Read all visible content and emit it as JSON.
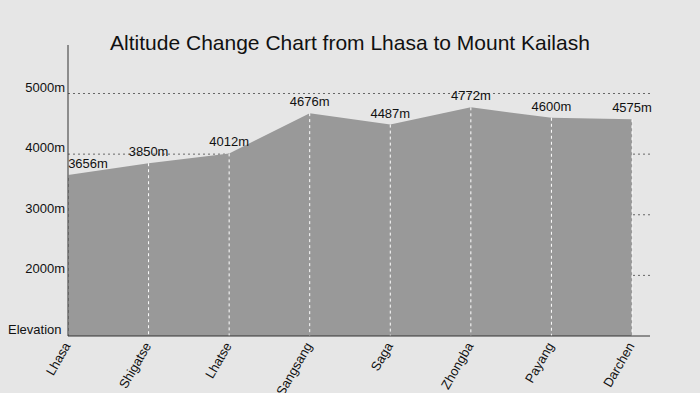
{
  "chart_data": {
    "type": "area",
    "title": "Altitude Change Chart from Lhasa to Mount Kailash",
    "y_label": "Elevation",
    "categories": [
      "Lhasa",
      "Shigatse",
      "Lhatse",
      "Sangsang",
      "Saga",
      "Zhongba",
      "Payang",
      "Darchen"
    ],
    "values": [
      3656,
      3850,
      4012,
      4676,
      4487,
      4772,
      4600,
      4575
    ],
    "value_labels": [
      "3656m",
      "3850m",
      "4012m",
      "4676m",
      "4487m",
      "4772m",
      "4600m",
      "4575m"
    ],
    "color": "#999999",
    "ylim": [
      1000,
      5800
    ],
    "yticks": [
      {
        "value": 2000,
        "label": "2000m"
      },
      {
        "value": 3000,
        "label": "3000m"
      },
      {
        "value": 4000,
        "label": "4000m"
      },
      {
        "value": 5000,
        "label": "5000m"
      }
    ],
    "grid": true,
    "data_labels": true
  }
}
